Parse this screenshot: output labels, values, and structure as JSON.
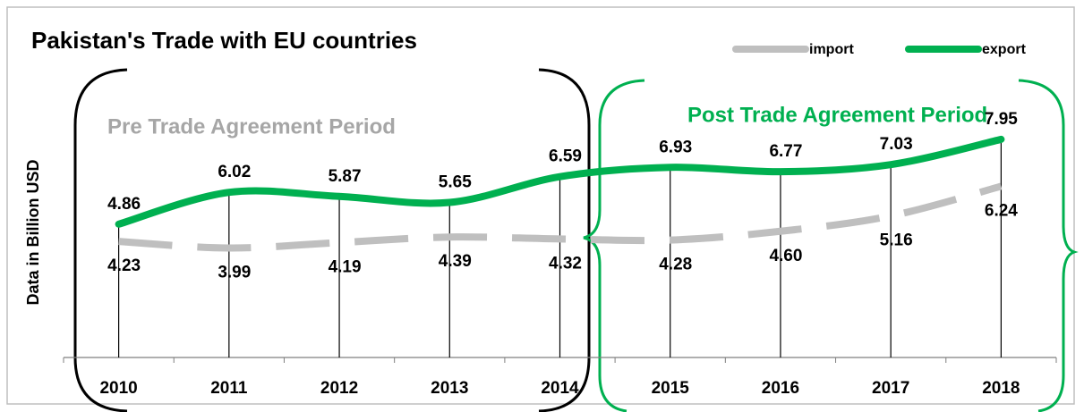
{
  "chart_data": {
    "type": "line",
    "title": "Pakistan's Trade with EU countries",
    "y_label": "Data in Billion USD",
    "annotations": [
      "Pre Trade Agreement Period",
      "Post Trade Agreement Period"
    ],
    "categories": [
      "2010",
      "2011",
      "2012",
      "2013",
      "2014",
      "2015",
      "2016",
      "2017",
      "2018"
    ],
    "series": [
      {
        "name": "import",
        "color": "#bfbfbf",
        "dashed": true,
        "values": [
          4.23,
          3.99,
          4.19,
          4.39,
          4.32,
          4.28,
          4.6,
          5.16,
          6.24
        ],
        "value_labels": [
          "4.23",
          "3.99",
          "4.19",
          "4.39",
          "4.32",
          "4.28",
          "4.60",
          "5.16",
          "6.24"
        ]
      },
      {
        "name": "export",
        "color": "#00b050",
        "dashed": false,
        "values": [
          4.86,
          6.02,
          5.87,
          5.65,
          6.59,
          6.93,
          6.77,
          7.03,
          7.95
        ],
        "value_labels": [
          "4.86",
          "6.02",
          "5.87",
          "5.65",
          "6.59",
          "6.93",
          "6.77",
          "7.03",
          "7.95"
        ]
      }
    ],
    "ylim": [
      0,
      10
    ],
    "legend": "top-right"
  }
}
